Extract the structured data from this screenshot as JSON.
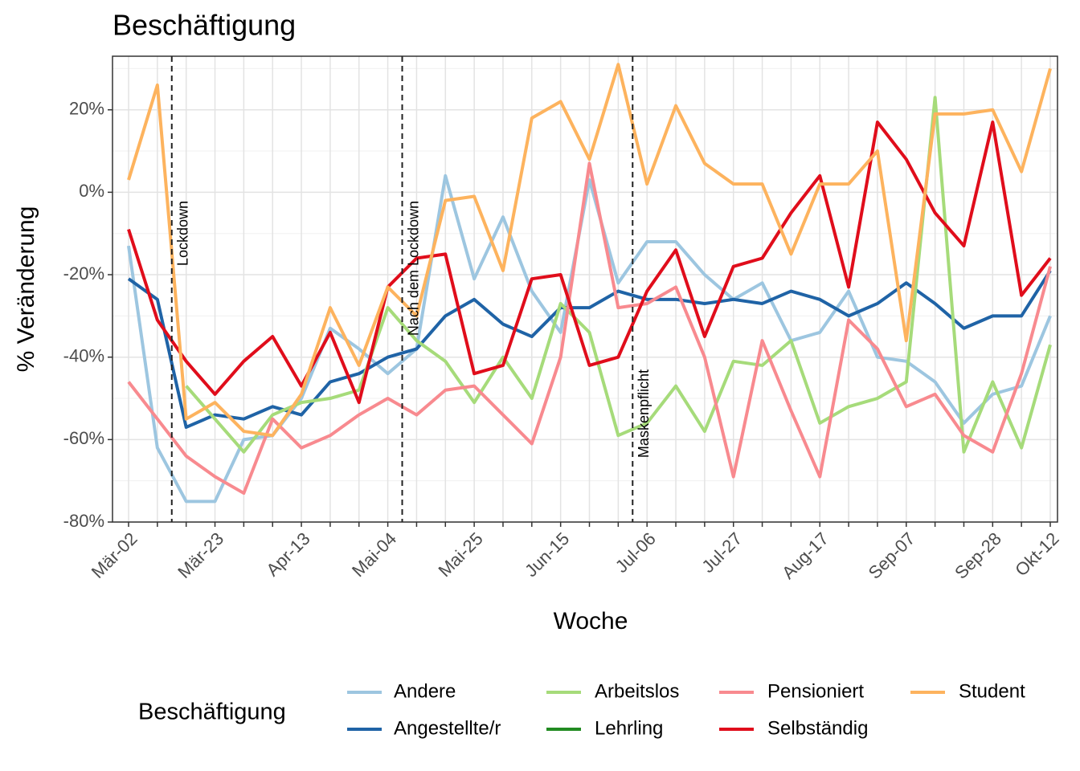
{
  "chart_data": {
    "type": "line",
    "title": "Beschäftigung",
    "x_label": "Woche",
    "y_label": "% Veränderung",
    "legend_title": "Beschäftigung",
    "legend": "bottom",
    "grid": true,
    "categories": [
      "Mär-02",
      null,
      null,
      "Mär-23",
      null,
      null,
      "Apr-13",
      null,
      null,
      "Mai-04",
      null,
      null,
      "Mai-25",
      null,
      null,
      "Jun-15",
      null,
      null,
      "Jul-06",
      null,
      null,
      "Jul-27",
      null,
      null,
      "Aug-17",
      null,
      null,
      "Sep-07",
      null,
      null,
      "Sep-28",
      null,
      "Okt-12"
    ],
    "ylim": [
      -80,
      33
    ],
    "yticks": [
      {
        "value": -80,
        "label": "-80%"
      },
      {
        "value": -60,
        "label": "-60%"
      },
      {
        "value": -40,
        "label": "-40%"
      },
      {
        "value": -20,
        "label": "-20%"
      },
      {
        "value": 0,
        "label": "0%"
      },
      {
        "value": 20,
        "label": "20%"
      }
    ],
    "annotations": [
      {
        "label": "Lockdown",
        "x": 1.5
      },
      {
        "label": "Nach dem Lockdown",
        "x": 9.5
      },
      {
        "label": "Maskenpflicht",
        "x": 17.5
      }
    ],
    "series": [
      {
        "name": "Andere",
        "color": "#9dc6e0",
        "values": [
          -13,
          -62,
          -75,
          -75,
          -60,
          -59,
          -50,
          -33,
          -38,
          -44,
          -38,
          4,
          -21,
          -6,
          -24,
          -34,
          3,
          -22,
          -12,
          -12,
          -20,
          -26,
          -22,
          -36,
          -34,
          -24,
          -40,
          -41,
          -46,
          -56,
          -49,
          -47,
          -30
        ]
      },
      {
        "name": "Angestellte/r",
        "color": "#1f63a6",
        "values": [
          -21,
          -26,
          -57,
          -54,
          -55,
          -52,
          -54,
          -46,
          -44,
          -40,
          -38,
          -30,
          -26,
          -32,
          -35,
          -28,
          -28,
          -24,
          -26,
          -26,
          -27,
          -26,
          -27,
          -24,
          -26,
          -30,
          -27,
          -22,
          -27,
          -33,
          -30,
          -30,
          -19
        ]
      },
      {
        "name": "Arbeitslos",
        "color": "#a6db7a",
        "values": [
          null,
          null,
          -47,
          -55,
          -63,
          -54,
          -51,
          -50,
          -48,
          -28,
          -36,
          -41,
          -51,
          -40,
          -50,
          -27,
          -34,
          -59,
          -56,
          -47,
          -58,
          -41,
          -42,
          -36,
          -56,
          -52,
          -50,
          -46,
          23,
          -63,
          -46,
          -62,
          -37
        ]
      },
      {
        "name": "Lehrling",
        "color": "#228b22",
        "values": [
          null,
          null,
          null,
          null,
          null,
          null,
          null,
          null,
          null,
          null,
          null,
          null,
          null,
          null,
          null,
          null,
          null,
          null,
          null,
          null,
          null,
          null,
          null,
          null,
          null,
          null,
          null,
          null,
          null,
          null,
          null,
          null,
          null
        ]
      },
      {
        "name": "Pensioniert",
        "color": "#f88a8f",
        "values": [
          -46,
          -55,
          -64,
          -69,
          -73,
          -55,
          -62,
          -59,
          -54,
          -50,
          -54,
          -48,
          -47,
          -54,
          -61,
          -40,
          7,
          -28,
          -27,
          -23,
          -40,
          -69,
          -36,
          -53,
          -69,
          -31,
          -38,
          -52,
          -49,
          -59,
          -63,
          -44,
          -18
        ]
      },
      {
        "name": "Selbständig",
        "color": "#e00d1b",
        "values": [
          -9,
          -31,
          -41,
          -49,
          -41,
          -35,
          -47,
          -34,
          -51,
          -23,
          -16,
          -15,
          -44,
          -42,
          -21,
          -20,
          -42,
          -40,
          -24,
          -14,
          -35,
          -18,
          -16,
          -5,
          4,
          -23,
          17,
          8,
          -5,
          -13,
          17,
          -25,
          -16
        ]
      },
      {
        "name": "Student",
        "color": "#fdb35e",
        "values": [
          3,
          26,
          -55,
          -51,
          -58,
          -59,
          -49,
          -28,
          -42,
          -23,
          -30,
          -2,
          -1,
          -19,
          18,
          22,
          8,
          31,
          2,
          21,
          7,
          2,
          2,
          -15,
          2,
          2,
          10,
          -36,
          19,
          19,
          20,
          5,
          30
        ]
      }
    ]
  }
}
